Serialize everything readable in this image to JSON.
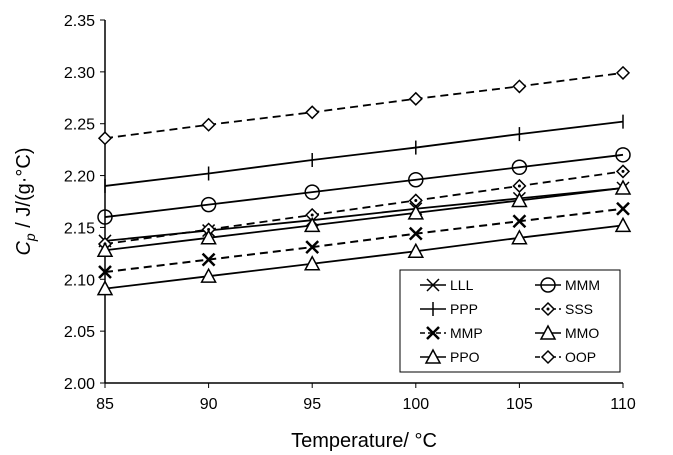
{
  "chart_data": {
    "type": "line",
    "xlabel": "Temperature/ °C",
    "ylabel_main": "C",
    "ylabel_sub": "p",
    "ylabel_rest": " / J/(g·°C)",
    "xlim": [
      85,
      110
    ],
    "ylim": [
      2.0,
      2.35
    ],
    "xticks": [
      "85",
      "90",
      "95",
      "100",
      "105",
      "110"
    ],
    "yticks": [
      "2.00",
      "2.05",
      "2.10",
      "2.15",
      "2.20",
      "2.25",
      "2.30",
      "2.35"
    ],
    "x": [
      85,
      90,
      95,
      100,
      105,
      110
    ],
    "legend_position": "bottom-right",
    "series": [
      {
        "name": "LLL",
        "marker": "x",
        "dash": false,
        "values": [
          2.137,
          2.147,
          2.157,
          2.168,
          2.178,
          2.188
        ]
      },
      {
        "name": "MMM",
        "marker": "circle",
        "dash": false,
        "values": [
          2.16,
          2.172,
          2.184,
          2.196,
          2.208,
          2.22
        ]
      },
      {
        "name": "PPP",
        "marker": "plus",
        "dash": false,
        "values": [
          2.19,
          2.202,
          2.215,
          2.227,
          2.24,
          2.252
        ]
      },
      {
        "name": "SSS",
        "marker": "diamond-small",
        "dash": true,
        "values": [
          2.134,
          2.148,
          2.162,
          2.176,
          2.19,
          2.204
        ]
      },
      {
        "name": "MMP",
        "marker": "x-bold",
        "dash": true,
        "values": [
          2.107,
          2.119,
          2.131,
          2.144,
          2.156,
          2.168
        ]
      },
      {
        "name": "MMO",
        "marker": "triangle",
        "dash": false,
        "values": [
          2.128,
          2.14,
          2.152,
          2.164,
          2.176,
          2.188
        ]
      },
      {
        "name": "PPO",
        "marker": "triangle",
        "dash": false,
        "values": [
          2.091,
          2.103,
          2.115,
          2.127,
          2.14,
          2.152
        ]
      },
      {
        "name": "OOP",
        "marker": "diamond",
        "dash": true,
        "values": [
          2.236,
          2.249,
          2.261,
          2.274,
          2.286,
          2.299
        ]
      }
    ]
  }
}
